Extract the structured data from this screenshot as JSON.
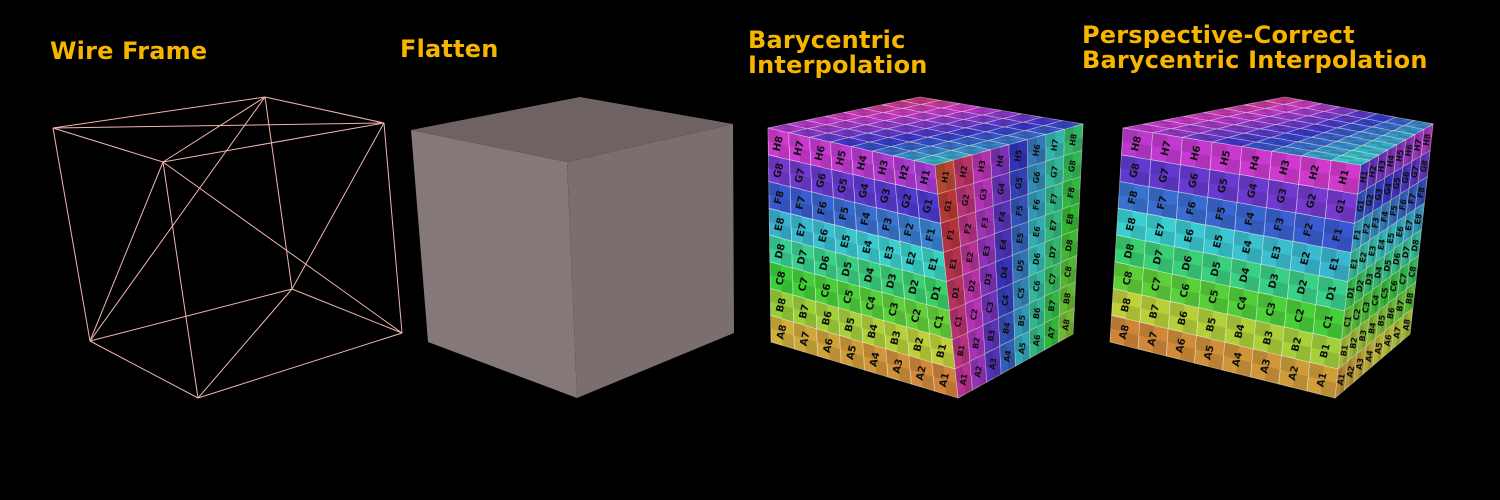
{
  "panels": [
    {
      "id": "wireframe",
      "caption": "Wire Frame"
    },
    {
      "id": "flatten",
      "caption": "Flatten"
    },
    {
      "id": "barycentric",
      "caption": "Barycentric\nInterpolation"
    },
    {
      "id": "perspective",
      "caption": "Perspective-Correct\nBarycentric Interpolation"
    }
  ],
  "texture": {
    "rows": [
      "A",
      "B",
      "C",
      "D",
      "E",
      "F",
      "G",
      "H"
    ],
    "columns": [
      "1",
      "2",
      "3",
      "4",
      "5",
      "6",
      "7",
      "8"
    ]
  },
  "colors": {
    "caption": "#f7b500",
    "background": "#000000",
    "wire": "#f0b6b0",
    "flat_top": "#6f6262",
    "flat_front": "#857878",
    "flat_side": "#7a6e6e"
  }
}
